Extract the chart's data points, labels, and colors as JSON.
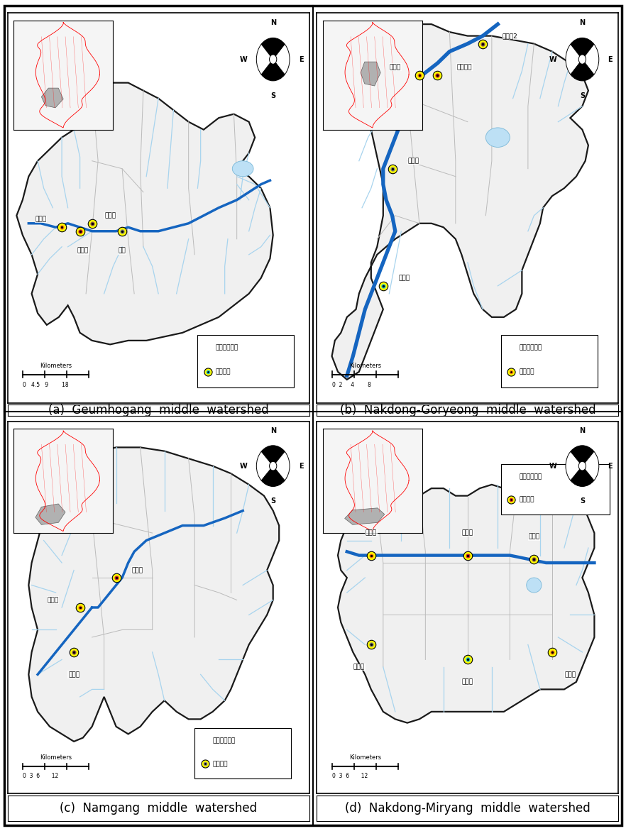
{
  "figure_size": [
    8.82,
    11.71
  ],
  "dpi": 100,
  "background_color": "#ffffff",
  "captions": [
    "(a)  Geumhogang  middle  watershed",
    "(b)  Nakdong-Goryeong  middle  watershed",
    "(c)  Namgang  middle  watershed",
    "(d)  Nakdong-Miryang  middle  watershed"
  ],
  "caption_fontsize": 12,
  "legend_text1": "지류모니터링",
  "legend_text2": "지류지점",
  "monitor_point_color": "#ffff00",
  "monitor_point_edge": "#000000",
  "main_river_color": "#1565c0",
  "trib_color": "#aed6f1",
  "watershed_fill": "#f8f8f8",
  "watershed_edge": "#111111",
  "sub_edge": "#aaaaaa",
  "inset_fill": "#f5f5f5"
}
